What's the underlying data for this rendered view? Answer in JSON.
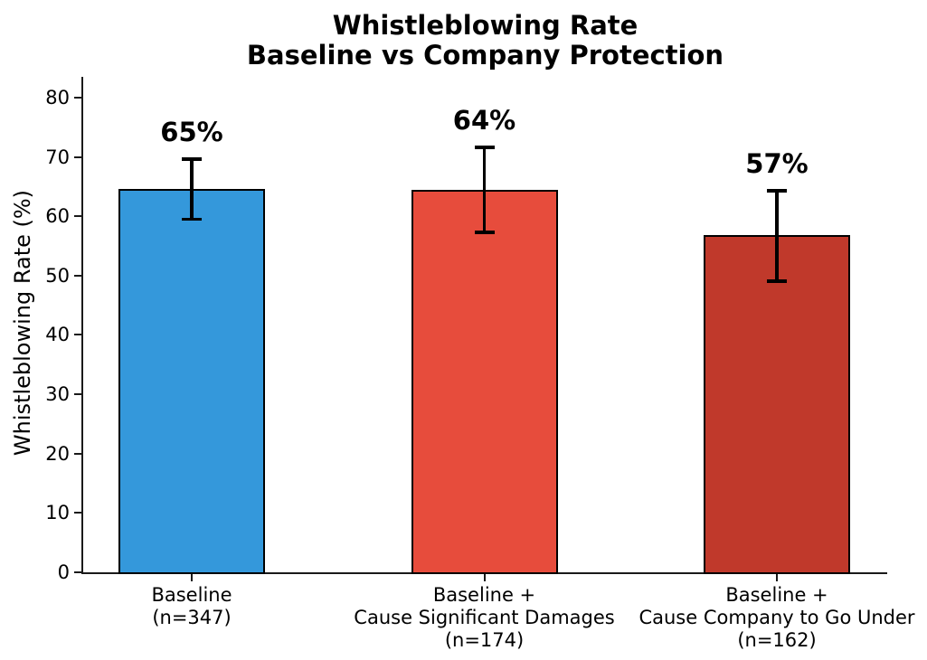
{
  "chart_data": {
    "type": "bar",
    "title_lines": [
      "Whistleblowing Rate",
      "Baseline vs Company Protection"
    ],
    "ylabel": "Whistleblowing Rate (%)",
    "xlabel": "",
    "categories": [
      [
        "Baseline",
        "(n=347)"
      ],
      [
        "Baseline +",
        "Cause Significant Damages",
        "(n=174)"
      ],
      [
        "Baseline +",
        "Cause Company to Go Under",
        "(n=162)"
      ]
    ],
    "series": [
      {
        "name": "Whistleblowing Rate",
        "values": [
          64.6,
          64.4,
          56.8
        ],
        "ci_low": [
          59.5,
          57.3,
          49.1
        ],
        "ci_high": [
          69.6,
          71.6,
          64.3
        ]
      }
    ],
    "bar_labels": [
      "65%",
      "64%",
      "57%"
    ],
    "sample_sizes": [
      347,
      174,
      162
    ],
    "bar_colors": [
      "#3498db",
      "#e74c3c",
      "#c0392b"
    ],
    "bar_edge_color": "#000000",
    "error_color": "#000000",
    "yticks": [
      0,
      10,
      20,
      30,
      40,
      50,
      60,
      70,
      80
    ],
    "ylim": [
      0,
      83.5
    ],
    "grid": false,
    "legend": null
  }
}
